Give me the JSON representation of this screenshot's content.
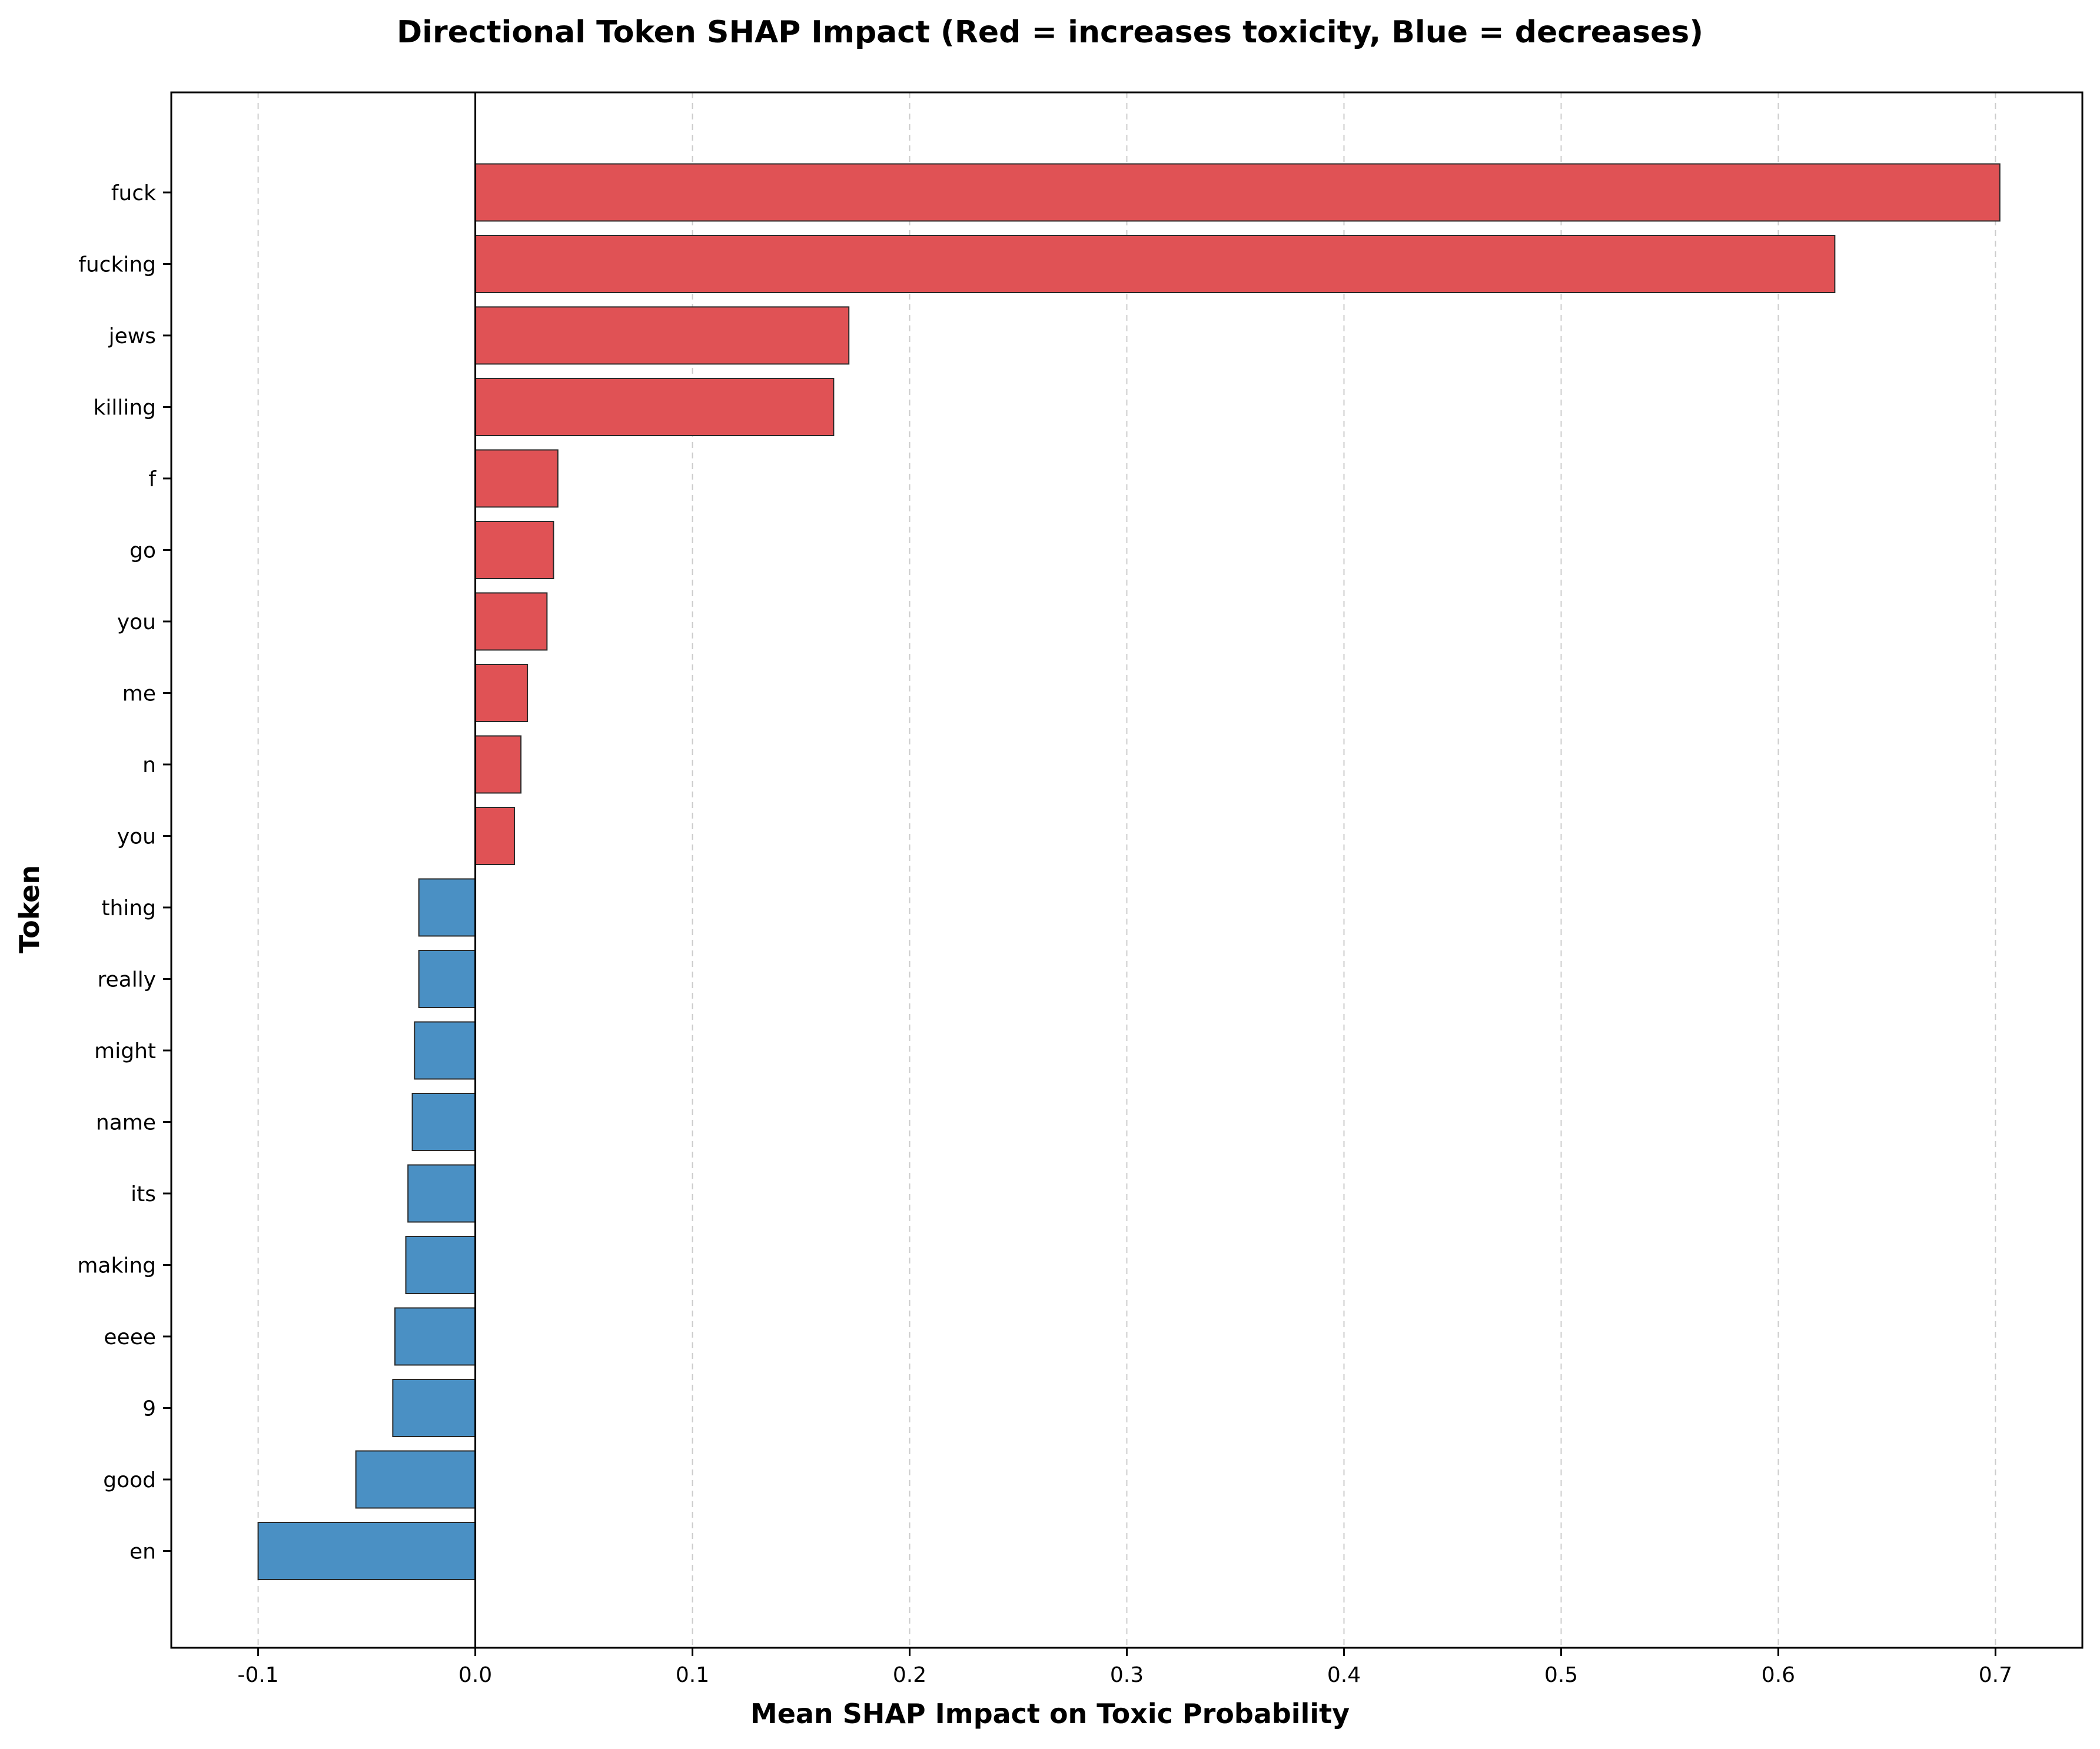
{
  "chart_data": {
    "type": "bar",
    "orientation": "horizontal",
    "title": "Directional Token SHAP Impact (Red = increases toxicity, Blue = decreases)",
    "xlabel": "Mean SHAP Impact on Toxic Probability",
    "ylabel": "Token",
    "xlim": [
      -0.14,
      0.74
    ],
    "xticks": [
      -0.1,
      0.0,
      0.1,
      0.2,
      0.3,
      0.4,
      0.5,
      0.6,
      0.7
    ],
    "xtick_labels": [
      "-0.1",
      "0.0",
      "0.1",
      "0.2",
      "0.3",
      "0.4",
      "0.5",
      "0.6",
      "0.7"
    ],
    "grid": "x-dashed",
    "categories": [
      "fuck",
      "fucking",
      "jews",
      "killing",
      "f",
      "go",
      "you",
      "me",
      "n",
      "you",
      "thing",
      "really",
      "might",
      "name",
      "its",
      "making",
      "eeee",
      "9",
      "good",
      "en"
    ],
    "values": [
      0.702,
      0.626,
      0.172,
      0.165,
      0.038,
      0.036,
      0.033,
      0.024,
      0.021,
      0.018,
      -0.026,
      -0.026,
      -0.028,
      -0.029,
      -0.031,
      -0.032,
      -0.037,
      -0.038,
      -0.055,
      -0.1
    ],
    "colors": {
      "positive": "#e05255",
      "negative": "#4a90c4",
      "bar_edge": "#2a2a2a",
      "zero_line": "#000000",
      "grid": "#cccccc"
    }
  }
}
